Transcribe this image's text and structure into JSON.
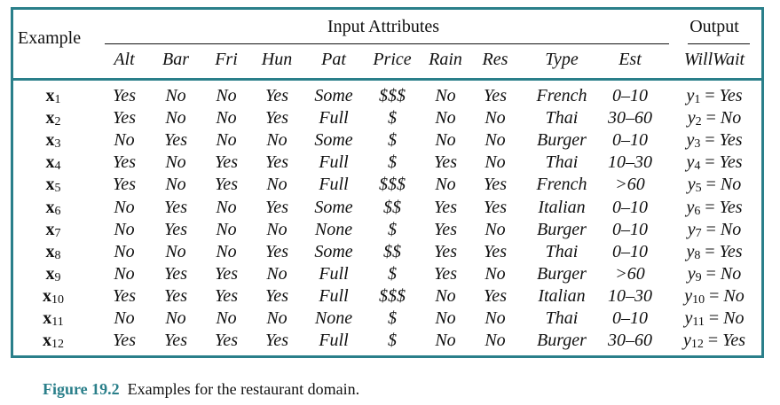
{
  "header": {
    "example_label": "Example",
    "input_group_label": "Input Attributes",
    "output_group_label": "Output",
    "columns": [
      "Alt",
      "Bar",
      "Fri",
      "Hun",
      "Pat",
      "Price",
      "Rain",
      "Res",
      "Type",
      "Est"
    ],
    "output_column": "WillWait"
  },
  "rows": [
    {
      "label": "x",
      "index": "1",
      "values": [
        "Yes",
        "No",
        "No",
        "Yes",
        "Some",
        "$$$",
        "No",
        "Yes",
        "French",
        "0–10"
      ],
      "y": "y",
      "y_index": "1",
      "y_value": "Yes"
    },
    {
      "label": "x",
      "index": "2",
      "values": [
        "Yes",
        "No",
        "No",
        "Yes",
        "Full",
        "$",
        "No",
        "No",
        "Thai",
        "30–60"
      ],
      "y": "y",
      "y_index": "2",
      "y_value": "No"
    },
    {
      "label": "x",
      "index": "3",
      "values": [
        "No",
        "Yes",
        "No",
        "No",
        "Some",
        "$",
        "No",
        "No",
        "Burger",
        "0–10"
      ],
      "y": "y",
      "y_index": "3",
      "y_value": "Yes"
    },
    {
      "label": "x",
      "index": "4",
      "values": [
        "Yes",
        "No",
        "Yes",
        "Yes",
        "Full",
        "$",
        "Yes",
        "No",
        "Thai",
        "10–30"
      ],
      "y": "y",
      "y_index": "4",
      "y_value": "Yes"
    },
    {
      "label": "x",
      "index": "5",
      "values": [
        "Yes",
        "No",
        "Yes",
        "No",
        "Full",
        "$$$",
        "No",
        "Yes",
        "French",
        ">60"
      ],
      "y": "y",
      "y_index": "5",
      "y_value": "No"
    },
    {
      "label": "x",
      "index": "6",
      "values": [
        "No",
        "Yes",
        "No",
        "Yes",
        "Some",
        "$$",
        "Yes",
        "Yes",
        "Italian",
        "0–10"
      ],
      "y": "y",
      "y_index": "6",
      "y_value": "Yes"
    },
    {
      "label": "x",
      "index": "7",
      "values": [
        "No",
        "Yes",
        "No",
        "No",
        "None",
        "$",
        "Yes",
        "No",
        "Burger",
        "0–10"
      ],
      "y": "y",
      "y_index": "7",
      "y_value": "No"
    },
    {
      "label": "x",
      "index": "8",
      "values": [
        "No",
        "No",
        "No",
        "Yes",
        "Some",
        "$$",
        "Yes",
        "Yes",
        "Thai",
        "0–10"
      ],
      "y": "y",
      "y_index": "8",
      "y_value": "Yes"
    },
    {
      "label": "x",
      "index": "9",
      "values": [
        "No",
        "Yes",
        "Yes",
        "No",
        "Full",
        "$",
        "Yes",
        "No",
        "Burger",
        ">60"
      ],
      "y": "y",
      "y_index": "9",
      "y_value": "No"
    },
    {
      "label": "x",
      "index": "10",
      "values": [
        "Yes",
        "Yes",
        "Yes",
        "Yes",
        "Full",
        "$$$",
        "No",
        "Yes",
        "Italian",
        "10–30"
      ],
      "y": "y",
      "y_index": "10",
      "y_value": "No"
    },
    {
      "label": "x",
      "index": "11",
      "values": [
        "No",
        "No",
        "No",
        "No",
        "None",
        "$",
        "No",
        "No",
        "Thai",
        "0–10"
      ],
      "y": "y",
      "y_index": "11",
      "y_value": "No"
    },
    {
      "label": "x",
      "index": "12",
      "values": [
        "Yes",
        "Yes",
        "Yes",
        "Yes",
        "Full",
        "$",
        "No",
        "No",
        "Burger",
        "30–60"
      ],
      "y": "y",
      "y_index": "12",
      "y_value": "Yes"
    }
  ],
  "caption": {
    "figure_label": "Figure 19.2",
    "text": "Examples for the restaurant domain."
  },
  "colors": {
    "frame": "#2a7f8a",
    "caption_label": "#2a7f8a",
    "text": "#111111"
  }
}
